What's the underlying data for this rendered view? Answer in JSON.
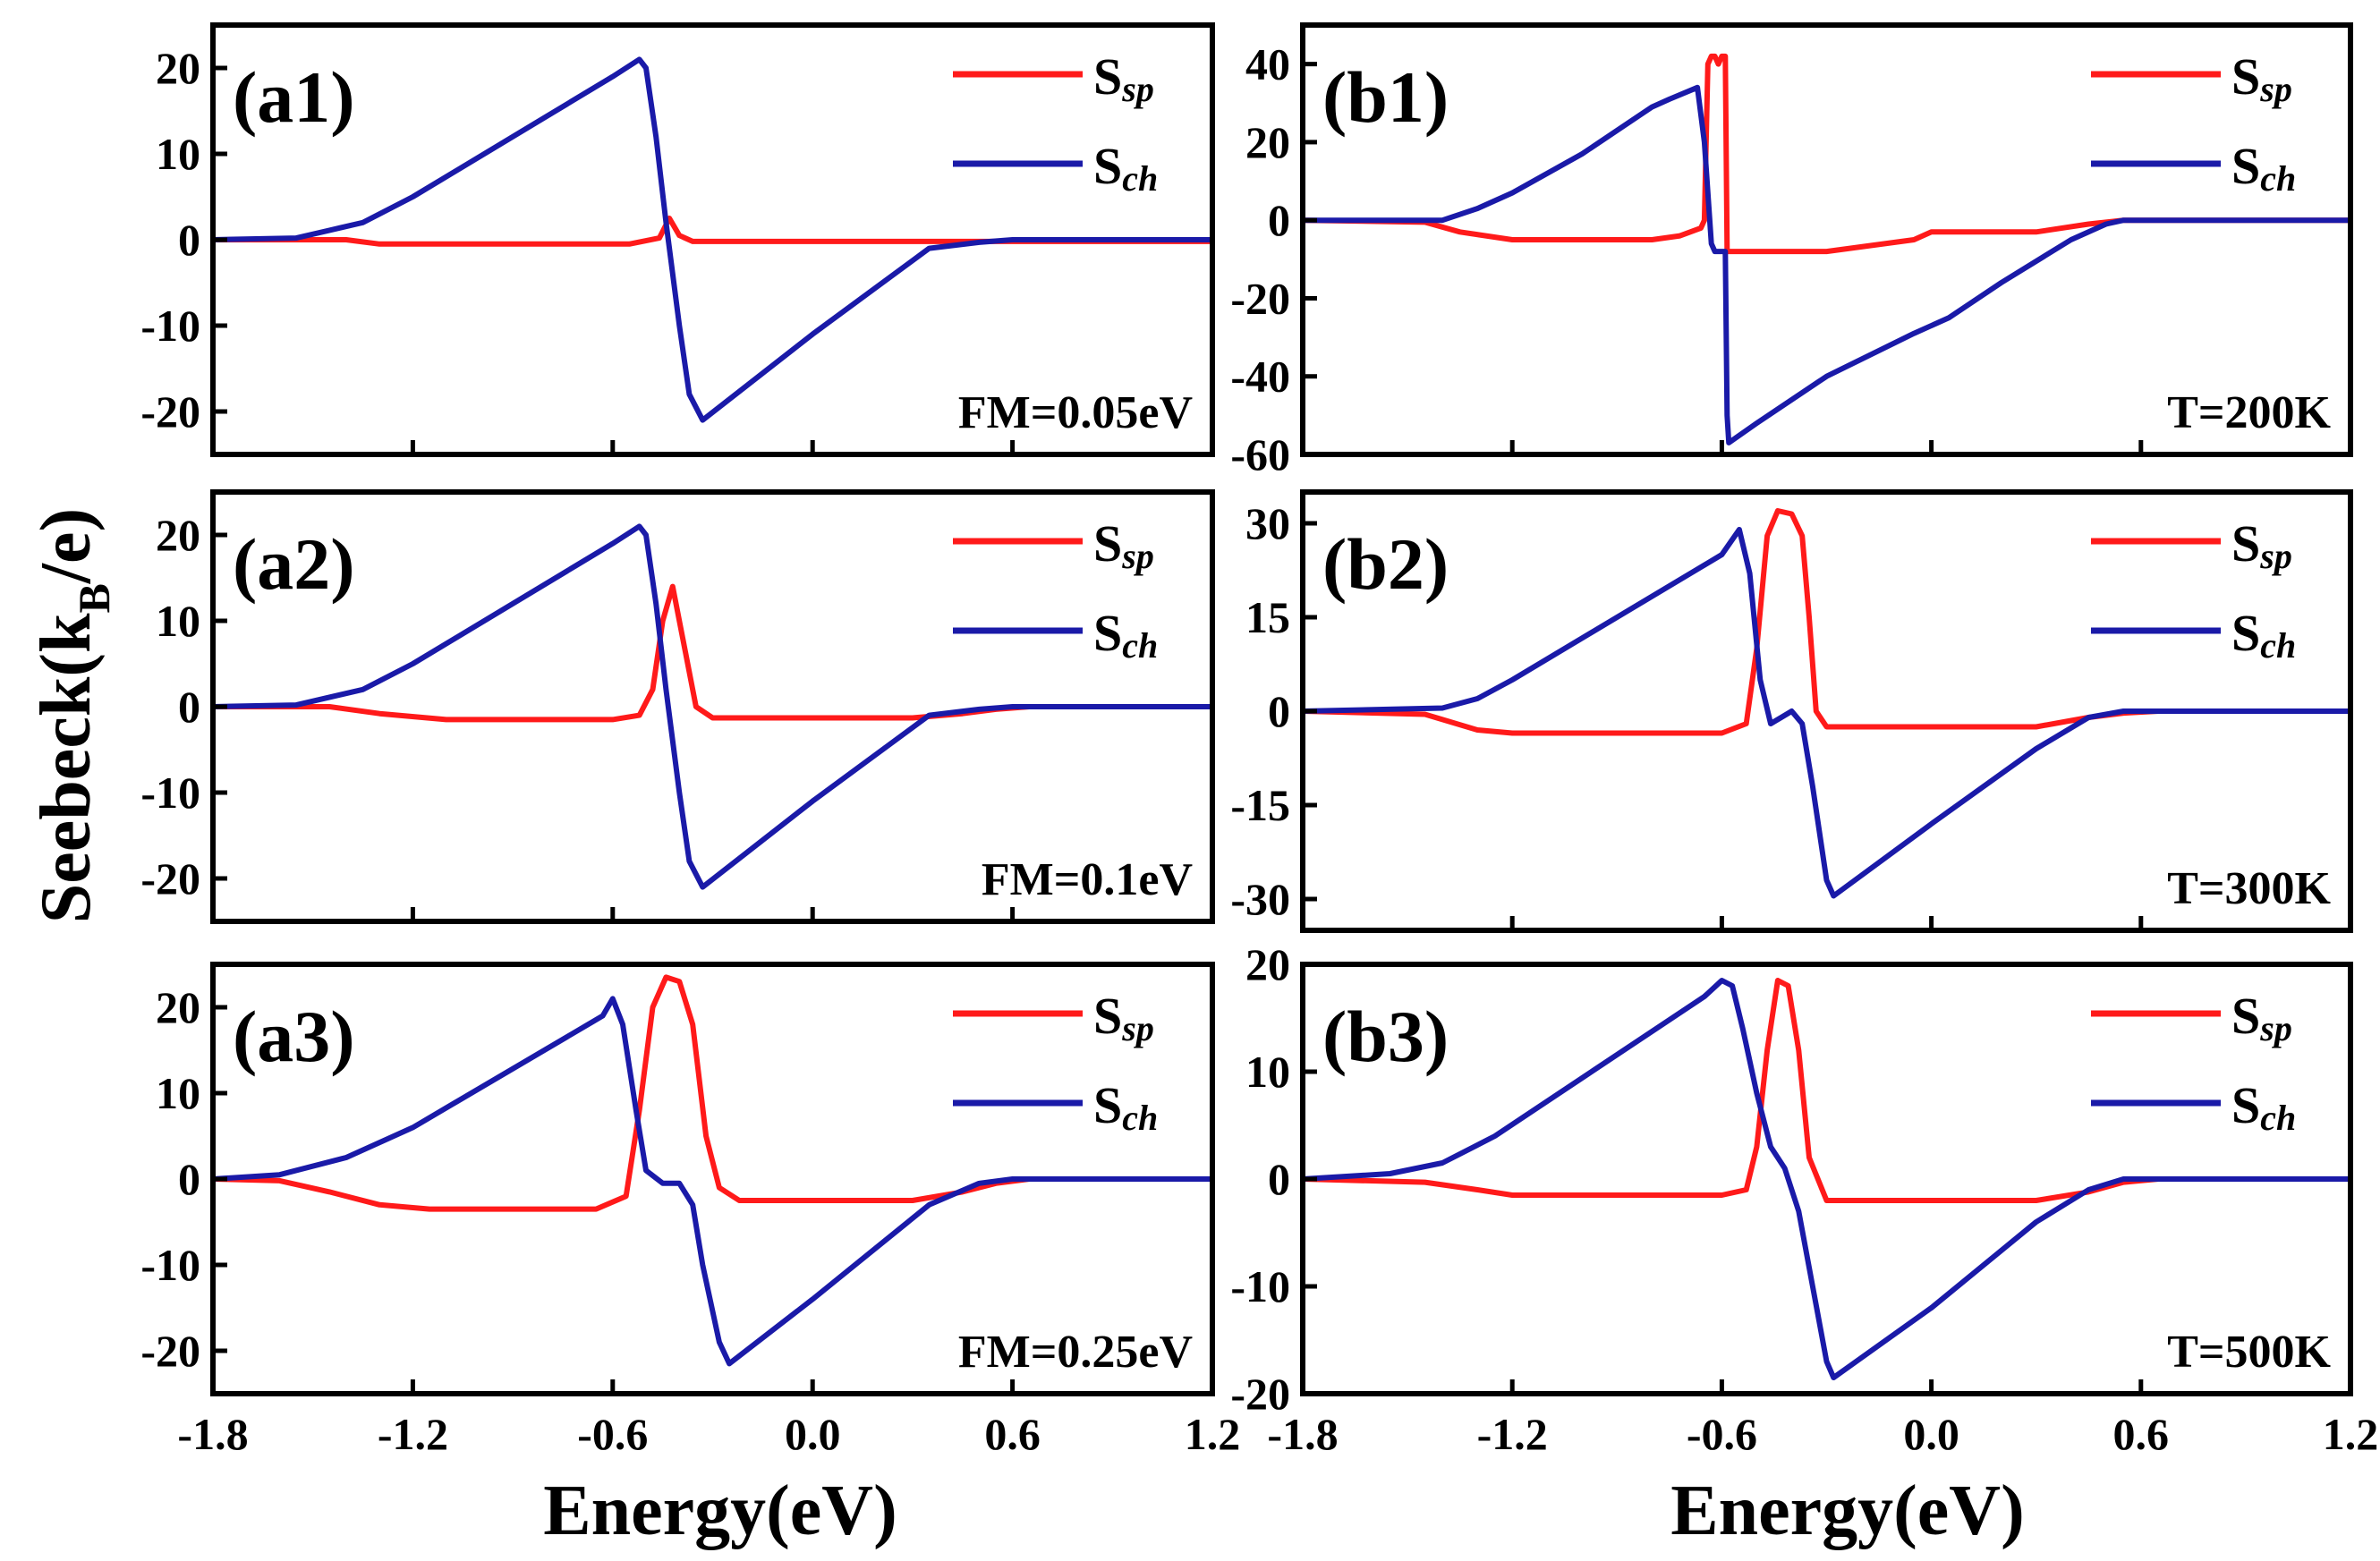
{
  "figure": {
    "ylabel_main": "Seebeck(k",
    "ylabel_sub": "B",
    "ylabel_tail": "/e)",
    "xlabel_left": "Energy(eV)",
    "xlabel_right": "Energy(eV)"
  },
  "colors": {
    "ssp": "#ff1a1a",
    "sch": "#1a1aa8"
  },
  "chart_data": [
    {
      "id": "a1",
      "type": "line",
      "label": "(a1)",
      "annotation": "FM=0.05eV",
      "xlabel": "Energy(eV)",
      "ylabel": "Seebeck(kB/e)",
      "xlim": [
        -1.8,
        1.2
      ],
      "ylim": [
        -25,
        25
      ],
      "xticks": [
        -1.8,
        -1.2,
        -0.6,
        0.0,
        0.6,
        1.2
      ],
      "xtick_labels": [
        "-1.8",
        "-1.2",
        "-0.6",
        "0.0",
        "0.6",
        "1.2"
      ],
      "yticks": [
        20,
        10,
        0,
        -10,
        -20
      ],
      "ytick_labels": [
        "20",
        "10",
        "0",
        "-10",
        "-20"
      ],
      "legend": [
        {
          "base": "S",
          "sub": "sp"
        },
        {
          "base": "S",
          "sub": "ch"
        }
      ],
      "series": [
        {
          "name": "Ssp",
          "x": [
            -1.8,
            -1.4,
            -1.3,
            -0.55,
            -0.46,
            -0.43,
            -0.4,
            -0.36,
            1.2
          ],
          "y": [
            0,
            0,
            -0.5,
            -0.5,
            0.2,
            2.5,
            0.5,
            -0.2,
            -0.2
          ]
        },
        {
          "name": "Sch",
          "x": [
            -1.8,
            -1.55,
            -1.35,
            -1.2,
            -0.6,
            -0.52,
            -0.5,
            -0.47,
            -0.44,
            -0.4,
            -0.37,
            -0.33,
            0.0,
            0.35,
            0.5,
            0.6,
            1.2
          ],
          "y": [
            0,
            0.2,
            2,
            5,
            19,
            21,
            20,
            12,
            2,
            -10,
            -18,
            -21,
            -11,
            -1,
            -0.3,
            0,
            0
          ]
        }
      ]
    },
    {
      "id": "a2",
      "type": "line",
      "label": "(a2)",
      "annotation": "FM=0.1eV",
      "xlabel": "Energy(eV)",
      "ylabel": "Seebeck(kB/e)",
      "xlim": [
        -1.8,
        1.2
      ],
      "ylim": [
        -25,
        25
      ],
      "xticks": [
        -1.8,
        -1.2,
        -0.6,
        0.0,
        0.6,
        1.2
      ],
      "xtick_labels": [
        "-1.8",
        "-1.2",
        "-0.6",
        "0.0",
        "0.6",
        "1.2"
      ],
      "yticks": [
        20,
        10,
        0,
        -10,
        -20
      ],
      "ytick_labels": [
        "20",
        "10",
        "0",
        "-10",
        "-20"
      ],
      "legend": [
        {
          "base": "S",
          "sub": "sp"
        },
        {
          "base": "S",
          "sub": "ch"
        }
      ],
      "series": [
        {
          "name": "Ssp",
          "x": [
            -1.8,
            -1.45,
            -1.3,
            -1.1,
            -0.6,
            -0.52,
            -0.48,
            -0.45,
            -0.42,
            -0.39,
            -0.35,
            -0.3,
            0.3,
            0.45,
            0.55,
            0.65,
            1.2
          ],
          "y": [
            0,
            0,
            -0.8,
            -1.5,
            -1.5,
            -1,
            2,
            10,
            14,
            8,
            0,
            -1.3,
            -1.3,
            -0.8,
            -0.3,
            0,
            0
          ]
        },
        {
          "name": "Sch",
          "x": [
            -1.8,
            -1.55,
            -1.35,
            -1.2,
            -0.6,
            -0.52,
            -0.5,
            -0.47,
            -0.44,
            -0.4,
            -0.37,
            -0.33,
            0.0,
            0.35,
            0.5,
            0.6,
            1.2
          ],
          "y": [
            0,
            0.2,
            2,
            5,
            19,
            21,
            20,
            12,
            2,
            -10,
            -18,
            -21,
            -11,
            -1,
            -0.3,
            0,
            0
          ]
        }
      ]
    },
    {
      "id": "a3",
      "type": "line",
      "label": "(a3)",
      "annotation": "FM=0.25eV",
      "xlabel": "Energy(eV)",
      "ylabel": "Seebeck(kB/e)",
      "xlim": [
        -1.8,
        1.2
      ],
      "ylim": [
        -25,
        25
      ],
      "xticks": [
        -1.8,
        -1.2,
        -0.6,
        0.0,
        0.6,
        1.2
      ],
      "xtick_labels": [
        "-1.8",
        "-1.2",
        "-0.6",
        "0.0",
        "0.6",
        "1.2"
      ],
      "yticks": [
        20,
        10,
        0,
        -10,
        -20
      ],
      "ytick_labels": [
        "20",
        "10",
        "0",
        "-10",
        "-20"
      ],
      "legend": [
        {
          "base": "S",
          "sub": "sp"
        },
        {
          "base": "S",
          "sub": "ch"
        }
      ],
      "series": [
        {
          "name": "Ssp",
          "x": [
            -1.8,
            -1.6,
            -1.45,
            -1.3,
            -1.15,
            -0.65,
            -0.56,
            -0.52,
            -0.48,
            -0.44,
            -0.4,
            -0.36,
            -0.32,
            -0.28,
            -0.22,
            0.3,
            0.45,
            0.55,
            0.65,
            1.2
          ],
          "y": [
            0,
            -0.2,
            -1.5,
            -3,
            -3.5,
            -3.5,
            -2,
            8,
            20,
            23.5,
            23,
            18,
            5,
            -1,
            -2.5,
            -2.5,
            -1.5,
            -0.5,
            0,
            0
          ]
        },
        {
          "name": "Sch",
          "x": [
            -1.8,
            -1.6,
            -1.4,
            -1.2,
            -0.63,
            -0.6,
            -0.57,
            -0.53,
            -0.5,
            -0.45,
            -0.4,
            -0.36,
            -0.33,
            -0.28,
            -0.25,
            0.0,
            0.35,
            0.5,
            0.6,
            1.2
          ],
          "y": [
            0,
            0.5,
            2.5,
            6,
            19,
            21,
            18,
            8,
            1,
            -0.5,
            -0.5,
            -3,
            -10,
            -19,
            -21.5,
            -14,
            -3,
            -0.5,
            0,
            0
          ]
        }
      ]
    },
    {
      "id": "b1",
      "type": "line",
      "label": "(b1)",
      "annotation": "T=200K",
      "xlabel": "Energy(eV)",
      "ylabel": "Seebeck(kB/e)",
      "xlim": [
        -1.8,
        1.2
      ],
      "ylim": [
        -60,
        50
      ],
      "xticks": [
        -1.8,
        -1.2,
        -0.6,
        0.0,
        0.6,
        1.2
      ],
      "xtick_labels": [
        "-1.8",
        "-1.2",
        "-0.6",
        "0.0",
        "0.6",
        "1.2"
      ],
      "yticks": [
        40,
        20,
        0,
        -20,
        -40,
        -60
      ],
      "ytick_labels": [
        "40",
        "20",
        "0",
        "-20",
        "-40",
        "-60"
      ],
      "legend": [
        {
          "base": "S",
          "sub": "sp"
        },
        {
          "base": "S",
          "sub": "ch"
        }
      ],
      "series": [
        {
          "name": "Ssp",
          "x": [
            -1.8,
            -1.45,
            -1.35,
            -1.2,
            -0.8,
            -0.72,
            -0.66,
            -0.65,
            -0.64,
            -0.63,
            -0.62,
            -0.61,
            -0.6,
            -0.59,
            -0.585,
            -0.58,
            -0.5,
            -0.3,
            -0.05,
            0.0,
            0.3,
            0.45,
            0.55,
            1.2
          ],
          "y": [
            0,
            -0.5,
            -3,
            -5,
            -5,
            -4,
            -2,
            0,
            40,
            42,
            42,
            40,
            42,
            42,
            -8,
            -8,
            -8,
            -8,
            -5,
            -3,
            -3,
            -1,
            0,
            0
          ]
        },
        {
          "name": "Sch",
          "x": [
            -1.8,
            -1.4,
            -1.3,
            -1.2,
            -1.0,
            -0.8,
            -0.75,
            -0.67,
            -0.65,
            -0.63,
            -0.62,
            -0.6,
            -0.59,
            -0.585,
            -0.58,
            -0.5,
            -0.3,
            -0.05,
            0.05,
            0.2,
            0.4,
            0.5,
            0.55,
            1.2
          ],
          "y": [
            0,
            0,
            3,
            7,
            17,
            29,
            31,
            34,
            20,
            -6,
            -8,
            -8,
            -8,
            -50,
            -57,
            -52,
            -40,
            -29,
            -25,
            -16,
            -5,
            -1,
            0,
            0
          ]
        }
      ]
    },
    {
      "id": "b2",
      "type": "line",
      "label": "(b2)",
      "annotation": "T=300K",
      "xlabel": "Energy(eV)",
      "ylabel": "Seebeck(kB/e)",
      "xlim": [
        -1.8,
        1.2
      ],
      "ylim": [
        -35,
        35
      ],
      "xticks": [
        -1.8,
        -1.2,
        -0.6,
        0.0,
        0.6,
        1.2
      ],
      "xtick_labels": [
        "-1.8",
        "-1.2",
        "-0.6",
        "0.0",
        "0.6",
        "1.2"
      ],
      "yticks": [
        30,
        15,
        0,
        -15,
        -30
      ],
      "ytick_labels": [
        "30",
        "15",
        "0",
        "-15",
        "-30"
      ],
      "legend": [
        {
          "base": "S",
          "sub": "sp"
        },
        {
          "base": "S",
          "sub": "ch"
        }
      ],
      "series": [
        {
          "name": "Ssp",
          "x": [
            -1.8,
            -1.45,
            -1.3,
            -1.2,
            -0.6,
            -0.53,
            -0.5,
            -0.47,
            -0.44,
            -0.4,
            -0.37,
            -0.35,
            -0.33,
            -0.3,
            0.3,
            0.45,
            0.55,
            0.65,
            1.2
          ],
          "y": [
            0,
            -0.5,
            -3,
            -3.5,
            -3.5,
            -2,
            10,
            28,
            32,
            31.5,
            28,
            15,
            0,
            -2.5,
            -2.5,
            -1,
            -0.3,
            0,
            0
          ]
        },
        {
          "name": "Sch",
          "x": [
            -1.8,
            -1.4,
            -1.3,
            -1.2,
            -0.6,
            -0.55,
            -0.52,
            -0.49,
            -0.46,
            -0.43,
            -0.4,
            -0.37,
            -0.34,
            -0.3,
            -0.28,
            0.0,
            0.3,
            0.45,
            0.55,
            1.2
          ],
          "y": [
            0,
            0.5,
            2,
            5,
            25,
            29,
            22,
            5,
            -2,
            -1,
            0,
            -2,
            -12,
            -27,
            -29.5,
            -18,
            -6,
            -1,
            0,
            0
          ]
        }
      ]
    },
    {
      "id": "b3",
      "type": "line",
      "label": "(b3)",
      "annotation": "T=500K",
      "xlabel": "Energy(eV)",
      "ylabel": "Seebeck(kB/e)",
      "xlim": [
        -1.8,
        1.2
      ],
      "ylim": [
        -20,
        20
      ],
      "xticks": [
        -1.8,
        -1.2,
        -0.6,
        0.0,
        0.6,
        1.2
      ],
      "xtick_labels": [
        "-1.8",
        "-1.2",
        "-0.6",
        "0.0",
        "0.6",
        "1.2"
      ],
      "yticks": [
        20,
        10,
        0,
        -10,
        -20
      ],
      "ytick_labels": [
        "20",
        "10",
        "0",
        "-10",
        "-20"
      ],
      "legend": [
        {
          "base": "S",
          "sub": "sp"
        },
        {
          "base": "S",
          "sub": "ch"
        }
      ],
      "series": [
        {
          "name": "Ssp",
          "x": [
            -1.8,
            -1.45,
            -1.3,
            -1.2,
            -0.6,
            -0.53,
            -0.5,
            -0.47,
            -0.44,
            -0.41,
            -0.38,
            -0.35,
            -0.3,
            0.3,
            0.45,
            0.55,
            0.65,
            1.2
          ],
          "y": [
            0,
            -0.3,
            -1,
            -1.5,
            -1.5,
            -1,
            3,
            12,
            18.5,
            18,
            12,
            2,
            -2,
            -2,
            -1.2,
            -0.3,
            0,
            0
          ]
        },
        {
          "name": "Sch",
          "x": [
            -1.8,
            -1.55,
            -1.4,
            -1.25,
            -0.65,
            -0.6,
            -0.57,
            -0.54,
            -0.5,
            -0.46,
            -0.42,
            -0.38,
            -0.34,
            -0.3,
            -0.28,
            0.0,
            0.3,
            0.45,
            0.55,
            1.2
          ],
          "y": [
            0,
            0.5,
            1.5,
            4,
            17,
            18.5,
            18,
            14,
            8,
            3,
            1,
            -3,
            -10,
            -17,
            -18.5,
            -12,
            -4,
            -1,
            0,
            0
          ]
        }
      ]
    }
  ]
}
